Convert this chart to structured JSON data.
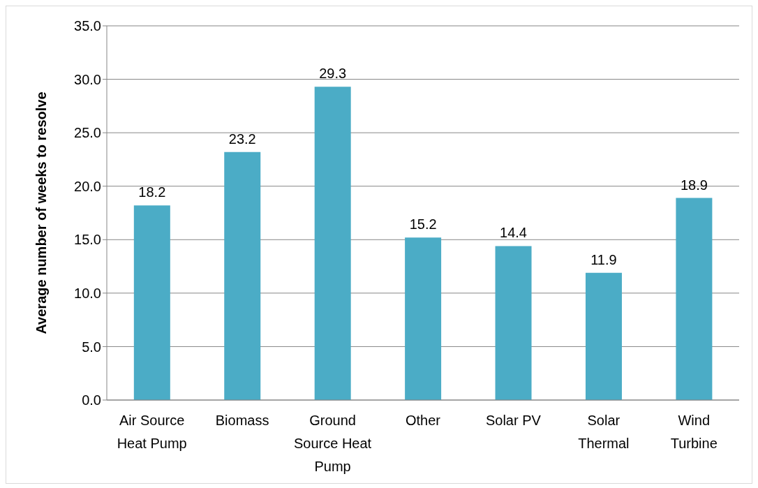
{
  "chart_data": {
    "type": "bar",
    "ylabel": "Average number of weeks to resolve",
    "categories": [
      "Air Source Heat Pump",
      "Biomass",
      "Ground Source Heat Pump",
      "Other",
      "Solar PV",
      "Solar Thermal",
      "Wind Turbine"
    ],
    "values": [
      18.2,
      23.2,
      29.3,
      15.2,
      14.4,
      11.9,
      18.9
    ],
    "color": "#4bacc6",
    "ylim": [
      0,
      35
    ],
    "yticks": [
      {
        "value": 0,
        "label": "0.0"
      },
      {
        "value": 5,
        "label": "5.0"
      },
      {
        "value": 10,
        "label": "10.0"
      },
      {
        "value": 15,
        "label": "15.0"
      },
      {
        "value": 20,
        "label": "20.0"
      },
      {
        "value": 25,
        "label": "25.0"
      },
      {
        "value": 30,
        "label": "30.0"
      },
      {
        "value": 35,
        "label": "35.0"
      }
    ],
    "grid": "y",
    "data_labels": true
  }
}
